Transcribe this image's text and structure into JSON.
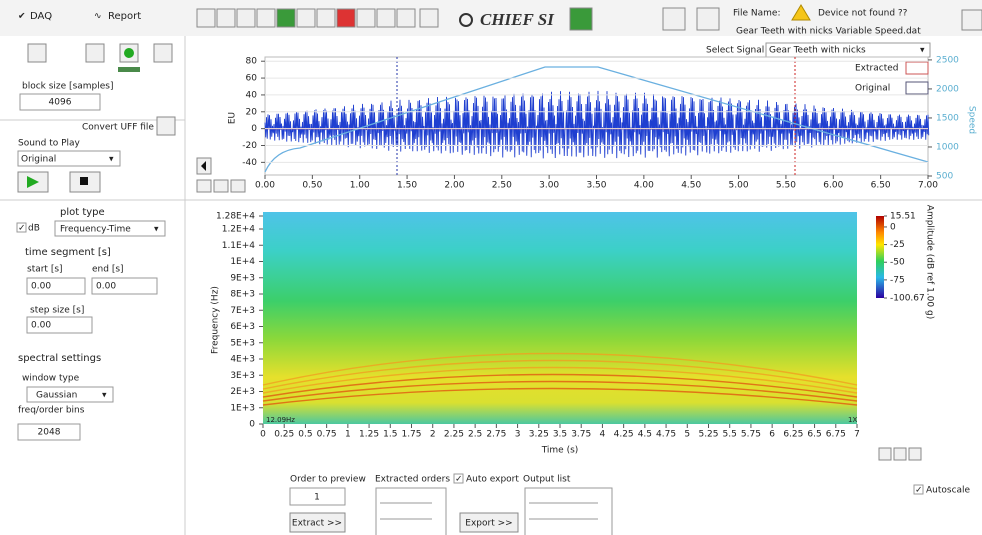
{
  "tabs": [
    "DAQ",
    "Report"
  ],
  "logo": "CHIEF SI",
  "file": {
    "label": "File Name:",
    "status": "Device not found ??",
    "name": "Gear Teeth with nicks Variable Speed.dat"
  },
  "left": {
    "block_size_label": "block size [samples]",
    "block_size": 4096,
    "convert_label": "Convert UFF file",
    "sound_label": "Sound to Play",
    "sound": "Original",
    "plot_type_label": "plot type",
    "db_label": "dB",
    "plot_type": "Frequency-Time",
    "time_segment_label": "time segment [s]",
    "start_label": "start [s]",
    "start": "0.00",
    "end_label": "end [s]",
    "end": "0.00",
    "step_label": "step size [s]",
    "step": "0.00",
    "spectral_label": "spectral settings",
    "window_label": "window type",
    "window": "Gaussian",
    "bins_label": "freq/order bins",
    "bins": 2048
  },
  "top_chart": {
    "select_label": "Select Signal",
    "signal": "Gear Teeth with nicks",
    "legend": [
      "Extracted",
      "Original"
    ],
    "ylabel": "EU",
    "y2label": "Speed",
    "xlim": [
      0,
      7
    ],
    "ylim": [
      -55,
      85
    ],
    "y2lim": [
      500,
      2550
    ],
    "xticks": [
      {
        "value": 0,
        "label": "0.00"
      },
      {
        "value": 0.5,
        "label": "0.50"
      },
      {
        "value": 1,
        "label": "1.00"
      },
      {
        "value": 1.5,
        "label": "1.50"
      },
      {
        "value": 2,
        "label": "2.00"
      },
      {
        "value": 2.5,
        "label": "2.50"
      },
      {
        "value": 3,
        "label": "3.00"
      },
      {
        "value": 3.5,
        "label": "3.50"
      },
      {
        "value": 4,
        "label": "4.00"
      },
      {
        "value": 4.5,
        "label": "4.50"
      },
      {
        "value": 5,
        "label": "5.00"
      },
      {
        "value": 5.5,
        "label": "5.50"
      },
      {
        "value": 6,
        "label": "6.00"
      },
      {
        "value": 6.5,
        "label": "6.50"
      },
      {
        "value": 7,
        "label": "7.00"
      }
    ],
    "yticks": [
      80,
      60,
      40,
      20,
      0,
      -20,
      -40
    ],
    "y2ticks": [
      2500,
      2000,
      1500,
      1000,
      500
    ]
  },
  "spectrogram": {
    "xlabel": "Time (s)",
    "ylabel": "Frequency (Hz)",
    "xlim": [
      0,
      7
    ],
    "ylim": [
      0,
      12800
    ],
    "xticks": [
      0,
      0.25,
      0.5,
      0.75,
      1,
      1.25,
      1.5,
      1.75,
      2,
      2.25,
      2.5,
      2.75,
      3,
      3.25,
      3.5,
      3.75,
      4,
      4.25,
      4.5,
      4.75,
      5,
      5.25,
      5.5,
      5.75,
      6,
      6.25,
      6.5,
      6.75,
      7
    ],
    "yticks": [
      {
        "value": 12800,
        "label": "1.28E+4"
      },
      {
        "value": 12000,
        "label": "1.2E+4"
      },
      {
        "value": 11000,
        "label": "1.1E+4"
      },
      {
        "value": 10000,
        "label": "1E+4"
      },
      {
        "value": 9000,
        "label": "9E+3"
      },
      {
        "value": 8000,
        "label": "8E+3"
      },
      {
        "value": 7000,
        "label": "7E+3"
      },
      {
        "value": 6000,
        "label": "6E+3"
      },
      {
        "value": 5000,
        "label": "5E+3"
      },
      {
        "value": 4000,
        "label": "4E+3"
      },
      {
        "value": 3000,
        "label": "3E+3"
      },
      {
        "value": 2000,
        "label": "2E+3"
      },
      {
        "value": 1000,
        "label": "1E+3"
      },
      0
    ],
    "colorbar": {
      "label": "Amplitude (dB ref 1.00 g)",
      "lim": [
        -100.67,
        15.51
      ],
      "ticks": [
        15.51,
        0,
        -25,
        -50,
        -75,
        -100.67
      ]
    },
    "corner_labels": [
      "12.09Hz",
      "1X"
    ]
  },
  "bottom": {
    "order_label": "Order to preview",
    "order": 1,
    "extracted_label": "Extracted orders",
    "auto_export": "Auto export",
    "output_label": "Output list",
    "extract_btn": "Extract >>",
    "export_btn": "Export >>",
    "autoscale": "Autoscale"
  }
}
